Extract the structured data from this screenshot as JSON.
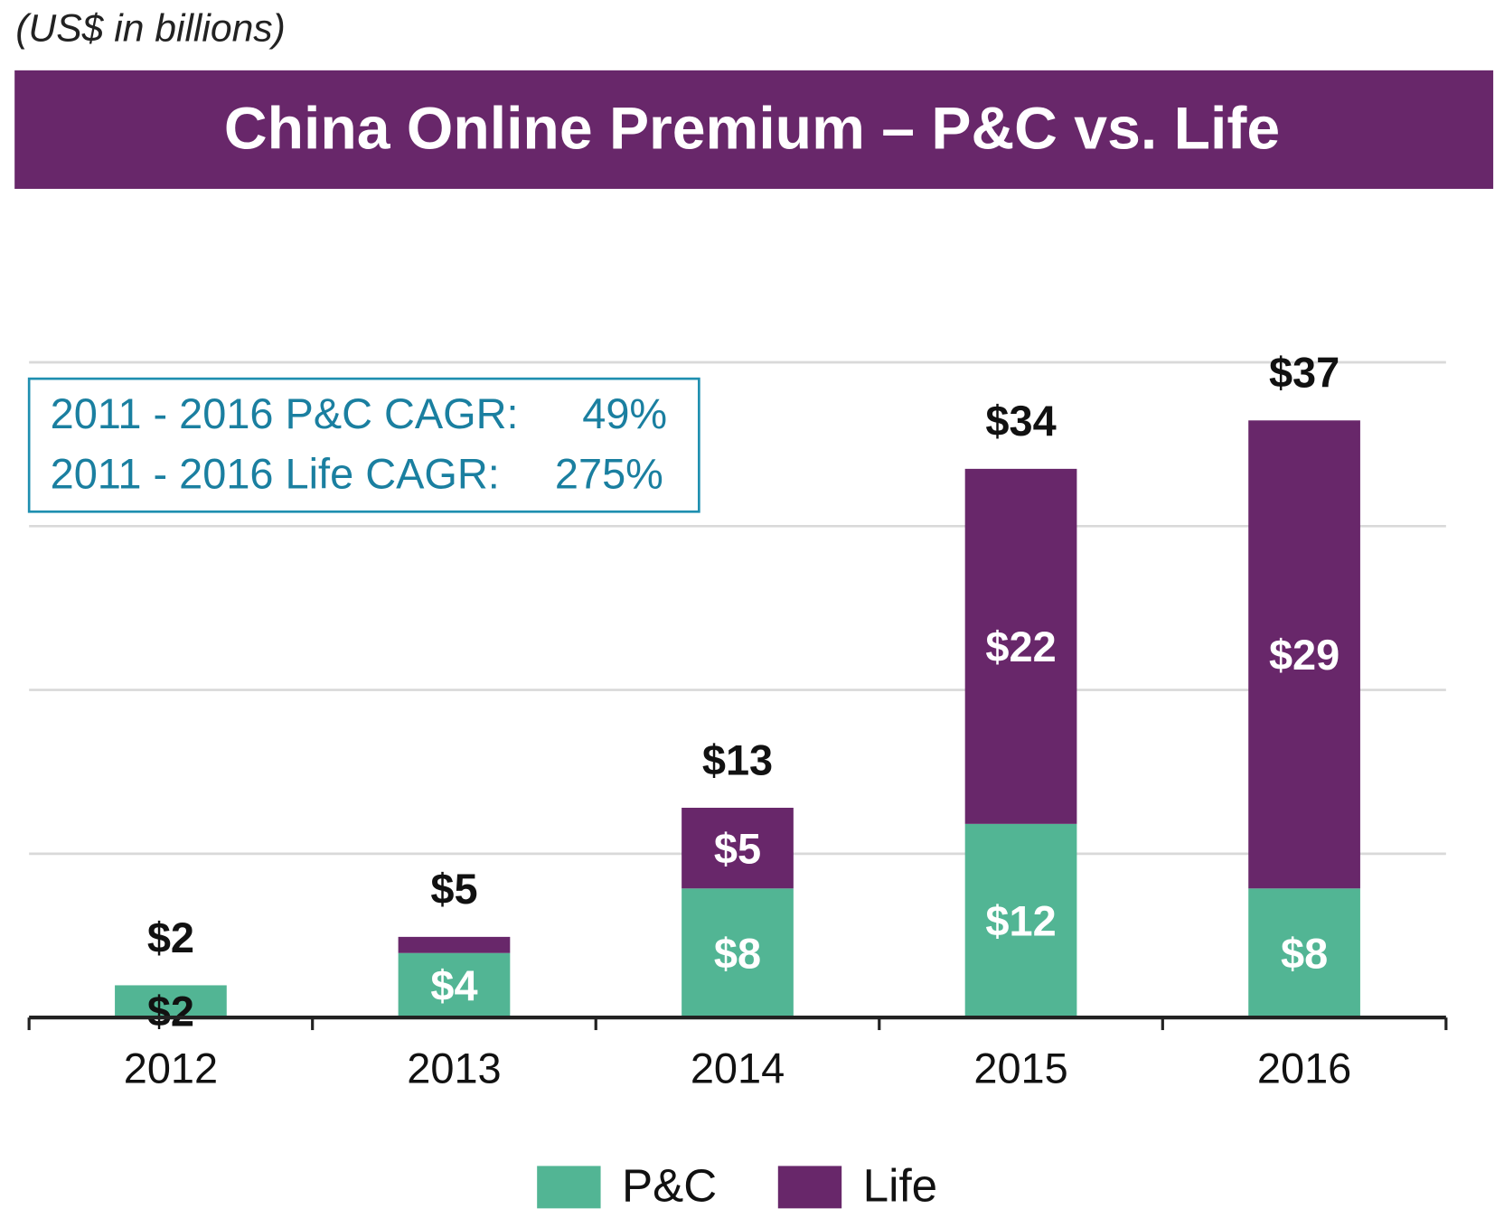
{
  "chart_data": {
    "type": "stacked_bar",
    "subtitle": "(US$ in billions)",
    "title": "China Online Premium – P&C vs. Life",
    "categories": [
      "2012",
      "2013",
      "2014",
      "2015",
      "2016"
    ],
    "series": [
      {
        "name": "P&C",
        "color": "#52b594",
        "values": [
          2,
          4,
          8,
          12,
          8
        ],
        "value_labels": [
          "$2",
          "$4",
          "$8",
          "$12",
          "$8"
        ]
      },
      {
        "name": "Life",
        "color": "#68276a",
        "values": [
          0,
          1,
          5,
          22,
          29
        ],
        "value_labels": [
          null,
          null,
          "$5",
          "$22",
          "$29"
        ]
      }
    ],
    "totals": [
      2,
      5,
      13,
      34,
      37
    ],
    "total_labels": [
      "$2",
      "$5",
      "$13",
      "$34",
      "$37"
    ],
    "ylim": [
      0,
      40.6
    ],
    "grid_values": [
      10.15,
      20.3,
      30.45,
      40.6
    ],
    "grid": true,
    "annotations": [
      {
        "label": "2011 - 2016 P&C CAGR:",
        "value": "49%"
      },
      {
        "label": "2011 - 2016 Life CAGR:",
        "value": "275%"
      }
    ],
    "legend": "bottom"
  }
}
